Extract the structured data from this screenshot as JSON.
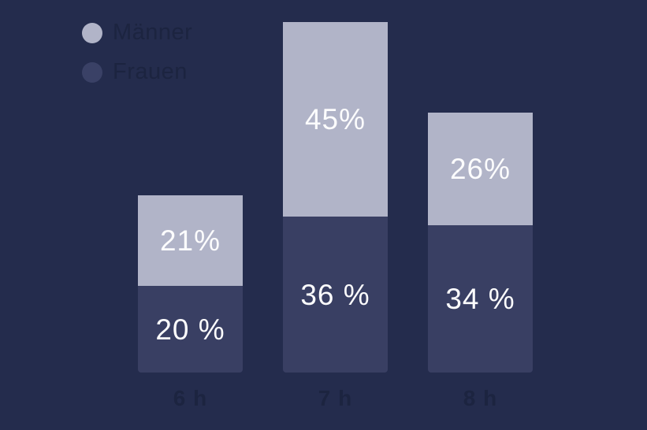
{
  "colors": {
    "background": "#242C4D",
    "maenner": "#B1B4C8",
    "frauen": "#393F63",
    "legend_frauen_swatch": "#3A4166",
    "value_text": "#FCFCFD",
    "muted_text": "#1C2440"
  },
  "legend": {
    "position": "top-left",
    "items": [
      {
        "label": "Männer",
        "color": "#B1B4C8"
      },
      {
        "label": "Frauen",
        "color": "#3A4166"
      }
    ]
  },
  "chart_data": {
    "type": "bar",
    "stacked": true,
    "orientation": "vertical",
    "categories": [
      "6 h",
      "7 h",
      "8 h"
    ],
    "series": [
      {
        "name": "Männer",
        "stack_position": "top",
        "values": [
          21,
          45,
          26
        ],
        "labels": [
          "21%",
          "45%",
          "26%"
        ],
        "color": "#B1B4C8",
        "label_color": "#FCFCFD"
      },
      {
        "name": "Frauen",
        "stack_position": "bottom",
        "values": [
          20,
          36,
          34
        ],
        "labels": [
          "20 %",
          "36 %",
          "34 %"
        ],
        "color": "#393F63",
        "label_color": "#FCFCFD"
      }
    ],
    "value_unit": "%",
    "axes": {
      "y_axis": "hidden",
      "x_tick_labels_visible": true,
      "gridlines": false
    },
    "legend_position": "top-left"
  }
}
